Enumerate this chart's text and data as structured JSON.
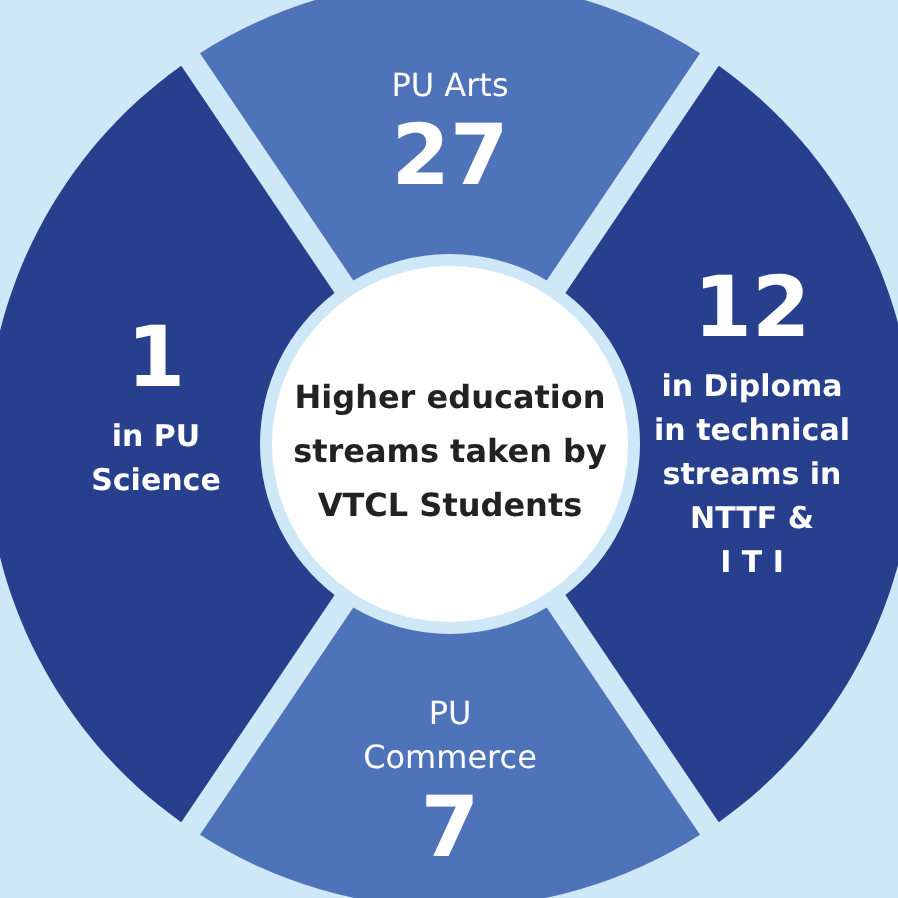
{
  "chart_data": {
    "type": "other",
    "title": "Higher education streams taken by VTCL Students",
    "categories": [
      "PU Arts",
      "in Diploma\nin technical\nstreams in\nNTTF &\nI T I",
      "PU\nCommerce",
      "in PU\nScience"
    ],
    "values": [
      27,
      12,
      7,
      1
    ],
    "data_labels": true,
    "colors": [
      "#4f73b9",
      "#273f8c",
      "#4f73b9",
      "#273f8c"
    ]
  }
}
